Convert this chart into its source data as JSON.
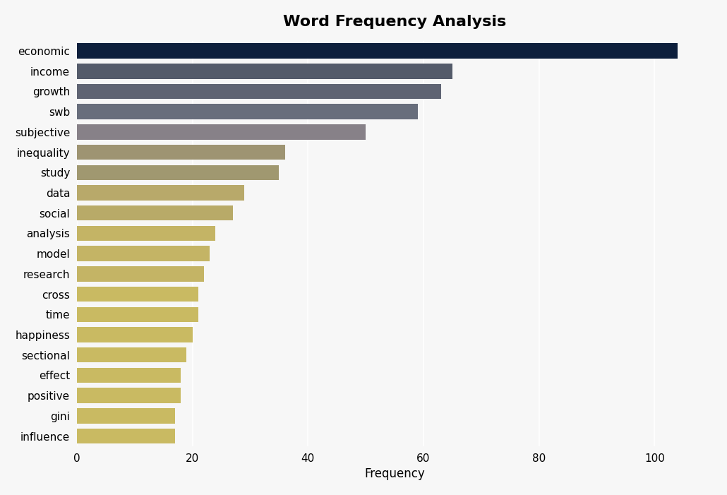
{
  "title": "Word Frequency Analysis",
  "xlabel": "Frequency",
  "categories": [
    "economic",
    "income",
    "growth",
    "swb",
    "subjective",
    "inequality",
    "study",
    "data",
    "social",
    "analysis",
    "model",
    "research",
    "cross",
    "time",
    "happiness",
    "sectional",
    "effect",
    "positive",
    "gini",
    "influence"
  ],
  "values": [
    104,
    65,
    63,
    59,
    50,
    36,
    35,
    29,
    27,
    24,
    23,
    22,
    21,
    21,
    20,
    19,
    18,
    18,
    17,
    17
  ],
  "bar_colors": [
    "#0d1f3c",
    "#545b6a",
    "#5f6473",
    "#686e7c",
    "#878188",
    "#9e9472",
    "#a09870",
    "#b8a96a",
    "#b8aa68",
    "#c4b465",
    "#c4b465",
    "#c4b465",
    "#c9ba62",
    "#c9ba62",
    "#c9ba62",
    "#c9ba62",
    "#c9ba62",
    "#c9ba62",
    "#c9ba62",
    "#c9ba62"
  ],
  "background_color": "#f7f7f7",
  "plot_bg_color": "#f7f7f7",
  "title_fontsize": 16,
  "xlim": [
    0,
    110
  ],
  "xticks": [
    0,
    20,
    40,
    60,
    80,
    100
  ],
  "bar_height": 0.75,
  "figsize": [
    10.3,
    7.01
  ],
  "dpi": 100
}
